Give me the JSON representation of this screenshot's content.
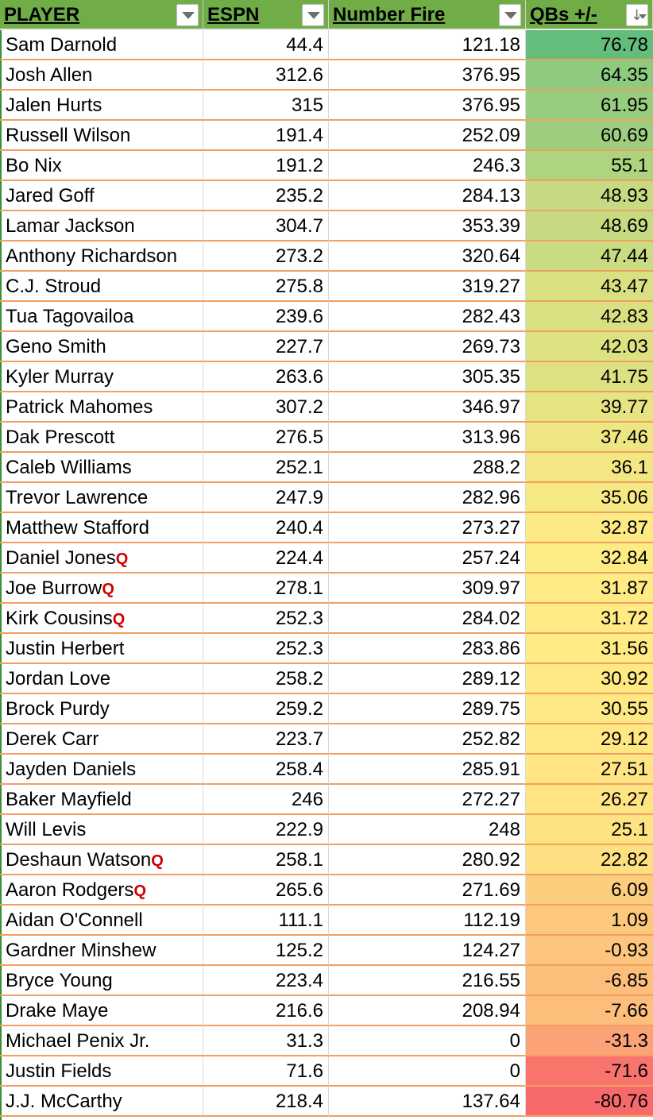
{
  "headers": [
    {
      "label": "PLAYER",
      "filter": "dropdown"
    },
    {
      "label": "ESPN",
      "filter": "dropdown"
    },
    {
      "label": "Number Fire",
      "filter": "dropdown"
    },
    {
      "label": "QBs +/-",
      "filter": "sort-descending"
    }
  ],
  "header_color": "#70ad47",
  "flag_color": "#d00000",
  "color_scale": {
    "min_color": "#f8696b",
    "mid_color": "#ffeb84",
    "max_color": "#63be7b"
  },
  "rows": [
    {
      "player": "Sam Darnold",
      "flag": "",
      "espn": "44.4",
      "nf": "121.18",
      "diff": "76.78"
    },
    {
      "player": "Josh Allen",
      "flag": "",
      "espn": "312.6",
      "nf": "376.95",
      "diff": "64.35"
    },
    {
      "player": "Jalen Hurts",
      "flag": "",
      "espn": "315",
      "nf": "376.95",
      "diff": "61.95"
    },
    {
      "player": "Russell Wilson",
      "flag": "",
      "espn": "191.4",
      "nf": "252.09",
      "diff": "60.69"
    },
    {
      "player": "Bo Nix",
      "flag": "",
      "espn": "191.2",
      "nf": "246.3",
      "diff": "55.1"
    },
    {
      "player": "Jared Goff",
      "flag": "",
      "espn": "235.2",
      "nf": "284.13",
      "diff": "48.93"
    },
    {
      "player": "Lamar Jackson",
      "flag": "",
      "espn": "304.7",
      "nf": "353.39",
      "diff": "48.69"
    },
    {
      "player": "Anthony Richardson",
      "flag": "",
      "espn": "273.2",
      "nf": "320.64",
      "diff": "47.44"
    },
    {
      "player": "C.J. Stroud",
      "flag": "",
      "espn": "275.8",
      "nf": "319.27",
      "diff": "43.47"
    },
    {
      "player": "Tua Tagovailoa",
      "flag": "",
      "espn": "239.6",
      "nf": "282.43",
      "diff": "42.83"
    },
    {
      "player": "Geno Smith",
      "flag": "",
      "espn": "227.7",
      "nf": "269.73",
      "diff": "42.03"
    },
    {
      "player": "Kyler Murray",
      "flag": "",
      "espn": "263.6",
      "nf": "305.35",
      "diff": "41.75"
    },
    {
      "player": "Patrick Mahomes",
      "flag": "",
      "espn": "307.2",
      "nf": "346.97",
      "diff": "39.77"
    },
    {
      "player": "Dak Prescott",
      "flag": "",
      "espn": "276.5",
      "nf": "313.96",
      "diff": "37.46"
    },
    {
      "player": "Caleb Williams",
      "flag": "",
      "espn": "252.1",
      "nf": "288.2",
      "diff": "36.1"
    },
    {
      "player": "Trevor Lawrence",
      "flag": "",
      "espn": "247.9",
      "nf": "282.96",
      "diff": "35.06"
    },
    {
      "player": "Matthew Stafford",
      "flag": "",
      "espn": "240.4",
      "nf": "273.27",
      "diff": "32.87"
    },
    {
      "player": "Daniel Jones",
      "flag": "Q",
      "espn": "224.4",
      "nf": "257.24",
      "diff": "32.84"
    },
    {
      "player": "Joe Burrow",
      "flag": "Q",
      "espn": "278.1",
      "nf": "309.97",
      "diff": "31.87"
    },
    {
      "player": "Kirk Cousins",
      "flag": "Q",
      "espn": "252.3",
      "nf": "284.02",
      "diff": "31.72"
    },
    {
      "player": "Justin Herbert",
      "flag": "",
      "espn": "252.3",
      "nf": "283.86",
      "diff": "31.56"
    },
    {
      "player": "Jordan Love",
      "flag": "",
      "espn": "258.2",
      "nf": "289.12",
      "diff": "30.92"
    },
    {
      "player": "Brock Purdy",
      "flag": "",
      "espn": "259.2",
      "nf": "289.75",
      "diff": "30.55"
    },
    {
      "player": "Derek Carr",
      "flag": "",
      "espn": "223.7",
      "nf": "252.82",
      "diff": "29.12"
    },
    {
      "player": "Jayden Daniels",
      "flag": "",
      "espn": "258.4",
      "nf": "285.91",
      "diff": "27.51"
    },
    {
      "player": "Baker Mayfield",
      "flag": "",
      "espn": "246",
      "nf": "272.27",
      "diff": "26.27"
    },
    {
      "player": "Will Levis",
      "flag": "",
      "espn": "222.9",
      "nf": "248",
      "diff": "25.1"
    },
    {
      "player": "Deshaun Watson",
      "flag": "Q",
      "espn": "258.1",
      "nf": "280.92",
      "diff": "22.82"
    },
    {
      "player": "Aaron Rodgers",
      "flag": "Q",
      "espn": "265.6",
      "nf": "271.69",
      "diff": "6.09"
    },
    {
      "player": "Aidan O'Connell",
      "flag": "",
      "espn": "111.1",
      "nf": "112.19",
      "diff": "1.09"
    },
    {
      "player": "Gardner Minshew",
      "flag": "",
      "espn": "125.2",
      "nf": "124.27",
      "diff": "-0.93"
    },
    {
      "player": "Bryce Young",
      "flag": "",
      "espn": "223.4",
      "nf": "216.55",
      "diff": "-6.85"
    },
    {
      "player": "Drake Maye",
      "flag": "",
      "espn": "216.6",
      "nf": "208.94",
      "diff": "-7.66"
    },
    {
      "player": "Michael Penix Jr.",
      "flag": "",
      "espn": "31.3",
      "nf": "0",
      "diff": "-31.3"
    },
    {
      "player": "Justin Fields",
      "flag": "",
      "espn": "71.6",
      "nf": "0",
      "diff": "-71.6"
    },
    {
      "player": "J.J. McCarthy",
      "flag": "",
      "espn": "218.4",
      "nf": "137.64",
      "diff": "-80.76"
    }
  ]
}
